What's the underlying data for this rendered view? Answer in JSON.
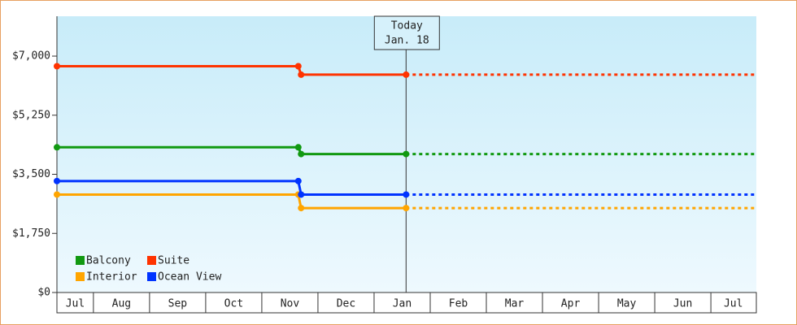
{
  "chart_data": {
    "type": "step-line",
    "ylim": [
      0,
      8180
    ],
    "yticks": [
      {
        "value": 0,
        "label": "$0"
      },
      {
        "value": 1750,
        "label": "$1,750"
      },
      {
        "value": 3500,
        "label": "$3,500"
      },
      {
        "value": 5250,
        "label": "$5,250"
      },
      {
        "value": 7000,
        "label": "$7,000"
      }
    ],
    "xlim": [
      0.35,
      12.81
    ],
    "xticks": [
      {
        "value": 0.675,
        "label": "Jul"
      },
      {
        "value": 1.5,
        "label": "Aug"
      },
      {
        "value": 2.5,
        "label": "Sep"
      },
      {
        "value": 3.5,
        "label": "Oct"
      },
      {
        "value": 4.5,
        "label": "Nov"
      },
      {
        "value": 5.5,
        "label": "Dec"
      },
      {
        "value": 6.5,
        "label": "Jan"
      },
      {
        "value": 7.5,
        "label": "Feb"
      },
      {
        "value": 8.5,
        "label": "Mar"
      },
      {
        "value": 9.5,
        "label": "Apr"
      },
      {
        "value": 10.5,
        "label": "May"
      },
      {
        "value": 11.5,
        "label": "Jun"
      },
      {
        "value": 12.4,
        "label": "Jul"
      }
    ],
    "x": [
      0.35,
      4.65,
      4.7,
      6.57,
      12.81
    ],
    "today": {
      "x": 6.57,
      "label": "Today",
      "date": "Jan. 18"
    },
    "legend": "bottom-left",
    "series": [
      {
        "name": "Balcony",
        "color": "#119911",
        "values": [
          4300,
          4300,
          4100,
          4100,
          4100
        ]
      },
      {
        "name": "Suite",
        "color": "#ff3300",
        "values": [
          6700,
          6700,
          6450,
          6450,
          6450
        ]
      },
      {
        "name": "Interior",
        "color": "#ffa500",
        "values": [
          2900,
          2900,
          2500,
          2500,
          2500
        ]
      },
      {
        "name": "Ocean View",
        "color": "#0033ff",
        "values": [
          3300,
          3300,
          2900,
          2900,
          2900
        ]
      }
    ]
  }
}
